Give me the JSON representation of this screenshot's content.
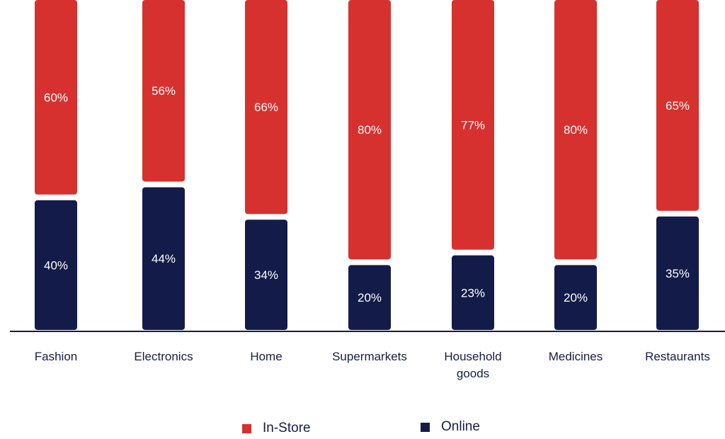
{
  "chart_data": {
    "type": "bar",
    "stacked": true,
    "orientation": "vertical",
    "categories": [
      "Fashion",
      "Electronics",
      "Home",
      "Supermarkets",
      "Household goods",
      "Medicines",
      "Restaurants"
    ],
    "category_lines": [
      [
        "Fashion"
      ],
      [
        "Electronics"
      ],
      [
        "Home"
      ],
      [
        "Supermarkets"
      ],
      [
        "Household",
        "goods"
      ],
      [
        "Medicines"
      ],
      [
        "Restaurants"
      ]
    ],
    "series": [
      {
        "name": "Online",
        "values": [
          40,
          44,
          34,
          20,
          23,
          20,
          35
        ],
        "labels": [
          "40%",
          "44%",
          "34%",
          "20%",
          "23%",
          "20%",
          "35%"
        ],
        "color": "#131c48"
      },
      {
        "name": "In-Store",
        "values": [
          60,
          56,
          66,
          80,
          77,
          80,
          65
        ],
        "labels": [
          "60%",
          "56%",
          "66%",
          "80%",
          "77%",
          "80%",
          "65%"
        ],
        "color": "#d6312e"
      }
    ],
    "ylim": [
      0,
      100
    ],
    "grid": false,
    "legend_position": "bottom"
  },
  "legend": {
    "instore_label": "In-Store",
    "online_label": "Online"
  },
  "colors": {
    "instore": "#d6312e",
    "online": "#131c48",
    "axis": "#151d44",
    "text": "#151d44"
  }
}
